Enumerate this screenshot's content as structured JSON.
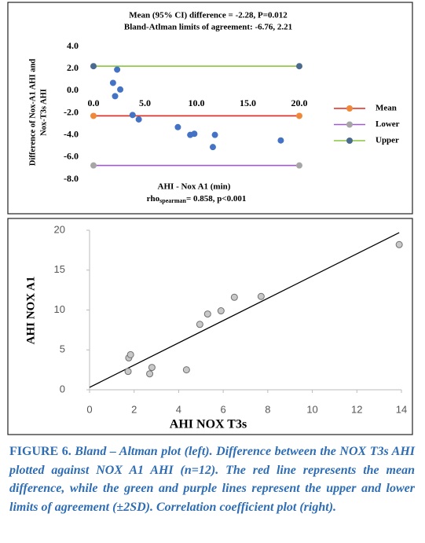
{
  "chart_data": [
    {
      "type": "bland-altman",
      "title": "Mean (95% CI) difference = -2.28, P=0.012",
      "subtitle": "Bland-Atlman limits of agreement: -6.76, 2.21",
      "ylabel": [
        "Difference of Nox-A1 AHI and",
        "Nox-T3s AHI"
      ],
      "xlabel": "AHI - Nox A1 (min)",
      "stat_prefix": "rho",
      "stat_subscript": "spearman",
      "stat_text": "= 0.858, p<0.001",
      "xlim": [
        0,
        20
      ],
      "ylim": [
        -8,
        4
      ],
      "xticks": [
        {
          "value": 0,
          "label": "0.0"
        },
        {
          "value": 5,
          "label": "5.0"
        },
        {
          "value": 10,
          "label": "10.0"
        },
        {
          "value": 15,
          "label": "15.0"
        },
        {
          "value": 20,
          "label": "20.0"
        }
      ],
      "yticks": [
        {
          "value": 4,
          "label": "4.0"
        },
        {
          "value": 2,
          "label": "2.0"
        },
        {
          "value": 0,
          "label": "0.0"
        },
        {
          "value": -2,
          "label": "-2.0"
        },
        {
          "value": -4,
          "label": "-4.0"
        },
        {
          "value": -6,
          "label": "-6.0"
        },
        {
          "value": -8,
          "label": "-8.0"
        }
      ],
      "points": {
        "color": "#4472c4",
        "x": [
          2.3,
          1.9,
          2.6,
          2.1,
          3.8,
          4.4,
          8.2,
          9.4,
          9.8,
          11.8,
          11.6,
          18.2
        ],
        "y": [
          1.9,
          0.7,
          0.1,
          -0.5,
          -2.2,
          -2.6,
          -3.3,
          -4.0,
          -3.9,
          -4.0,
          -5.1,
          -4.5
        ]
      },
      "series": [
        {
          "name": "Mean",
          "color": "#e3261d",
          "marker_color": "#f0883a",
          "x": [
            0,
            20
          ],
          "values": [
            -2.28,
            -2.28
          ]
        },
        {
          "name": "Lower",
          "color": "#a05cc8",
          "marker_color": "#a6a6a6",
          "x": [
            0,
            20
          ],
          "values": [
            -6.76,
            -6.76
          ]
        },
        {
          "name": "Upper",
          "color": "#8cc63e",
          "marker_color": "#4a6b8f",
          "x": [
            0,
            20
          ],
          "values": [
            2.21,
            2.21
          ]
        }
      ]
    },
    {
      "type": "scatter",
      "xlabel": "AHI NOX T3s",
      "ylabel": "AHI NOX A1",
      "xlim": [
        0,
        14
      ],
      "ylim": [
        0,
        20
      ],
      "xticks": [
        0,
        2,
        4,
        6,
        8,
        10,
        12,
        14
      ],
      "yticks": [
        0,
        5,
        10,
        15,
        20
      ],
      "points": {
        "color": "#c8c8c8",
        "stroke": "#6f6f6f",
        "x": [
          1.76,
          1.84,
          1.73,
          2.8,
          2.7,
          4.35,
          4.95,
          5.3,
          5.9,
          6.5,
          7.7,
          13.9
        ],
        "y": [
          4.0,
          4.4,
          2.3,
          2.8,
          2.0,
          2.5,
          8.2,
          9.5,
          9.9,
          11.6,
          11.7,
          18.2
        ]
      },
      "fit_line": {
        "color": "#000000",
        "x": [
          0,
          13.9
        ],
        "y": [
          0.3,
          19.7
        ]
      }
    }
  ],
  "caption": {
    "label": "FIGURE 6.",
    "text": "Bland – Altman plot (left). Difference between the NOX T3s AHI plotted against NOX A1 AHI (n=12). The red line represents the mean difference, while the green and purple lines represent the upper and lower limits of agreement (±2SD). Correlation coefficient plot (right)."
  }
}
